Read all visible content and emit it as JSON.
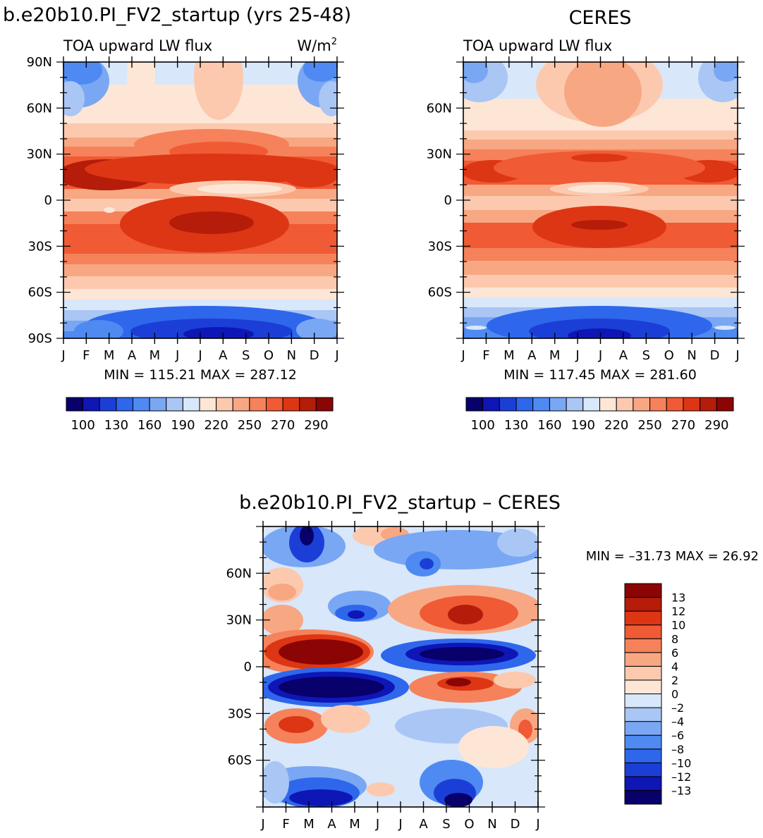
{
  "colors": {
    "main_scale": [
      "#08006b",
      "#0e16b6",
      "#1b3fd6",
      "#2e67ec",
      "#4e8af2",
      "#7aa7f3",
      "#a9c6f5",
      "#d8e7fa",
      "#fde6d6",
      "#fcc9ae",
      "#f8a783",
      "#f5825a",
      "#f05a34",
      "#dd3614",
      "#b51c09",
      "#8c0505"
    ],
    "diff_scale": [
      "#08006b",
      "#0e16b6",
      "#1b3fd6",
      "#2e67ec",
      "#4e8af2",
      "#7aa7f3",
      "#a9c6f5",
      "#d8e7fa",
      "#fde6d6",
      "#fcc9ae",
      "#f8a783",
      "#f5825a",
      "#f05a34",
      "#dd3614",
      "#b51c09",
      "#8c0505"
    ]
  },
  "chart_data": [
    {
      "type": "heatmap",
      "id": "model",
      "title": "b.e20b10.PI_FV2_startup (yrs 25-48)",
      "left_label": "TOA upward LW flux",
      "right_label": "W/m",
      "right_label_sup": "2",
      "x_ticks": [
        "J",
        "F",
        "M",
        "A",
        "M",
        "J",
        "J",
        "A",
        "S",
        "O",
        "N",
        "D",
        "J"
      ],
      "y_ticks": [
        "90N",
        "60N",
        "30N",
        "0",
        "30S",
        "60S",
        "90S"
      ],
      "y_tick_values": [
        90,
        60,
        30,
        0,
        -30,
        -60,
        -90
      ],
      "min_max": "MIN = 115.21 MAX = 287.12",
      "colorbar_labels": [
        "100",
        "130",
        "160",
        "190",
        "220",
        "250",
        "270",
        "290"
      ],
      "min": 115.21,
      "max": 287.12
    },
    {
      "type": "heatmap",
      "id": "ceres",
      "title": "CERES",
      "left_label": "TOA upward LW flux",
      "x_ticks": [
        "J",
        "F",
        "M",
        "A",
        "M",
        "J",
        "J",
        "A",
        "S",
        "O",
        "N",
        "D",
        "J"
      ],
      "y_ticks": [
        "60N",
        "30N",
        "0",
        "30S",
        "60S"
      ],
      "y_tick_values": [
        60,
        30,
        0,
        -30,
        -60
      ],
      "min_max": "MIN = 117.45 MAX = 281.60",
      "colorbar_labels": [
        "100",
        "130",
        "160",
        "190",
        "220",
        "250",
        "270",
        "290"
      ],
      "min": 117.45,
      "max": 281.6
    },
    {
      "type": "heatmap",
      "id": "diff",
      "title": "b.e20b10.PI_FV2_startup – CERES",
      "x_ticks": [
        "J",
        "F",
        "M",
        "A",
        "M",
        "J",
        "J",
        "A",
        "S",
        "O",
        "N",
        "D",
        "J"
      ],
      "y_ticks": [
        "60N",
        "30N",
        "0",
        "30S",
        "60S"
      ],
      "y_tick_values": [
        60,
        30,
        0,
        -30,
        -60
      ],
      "min_max": "MIN = –31.73 MAX =   26.92",
      "colorbar_labels": [
        "13",
        "12",
        "10",
        "8",
        "6",
        "4",
        "2",
        "0",
        "–2",
        "–4",
        "–6",
        "–8",
        "–10",
        "–12",
        "–13"
      ],
      "min": -31.73,
      "max": 26.92
    }
  ]
}
